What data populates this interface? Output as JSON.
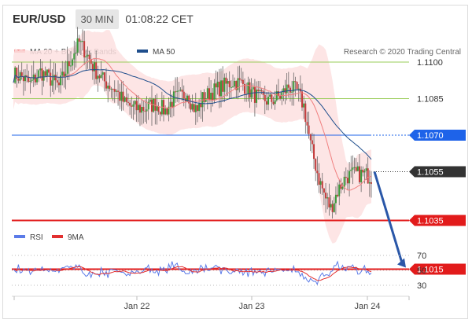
{
  "header": {
    "symbol": "EUR/USD",
    "timeframe": "30 MIN",
    "timestamp": "01:08:22 CET"
  },
  "legend_main": [
    {
      "label": "MA 20 + Bollinger Bands",
      "color": "#f08080"
    },
    {
      "label": "MA 50",
      "color": "#1f4e8c"
    }
  ],
  "legend_rsi": [
    {
      "label": "RSI",
      "color": "#5b7be8"
    },
    {
      "label": "9MA",
      "color": "#e23030"
    }
  ],
  "credit": "Research © 2020 Trading Central",
  "chart_data": {
    "type": "candlestick",
    "x_ticks": [
      "Jan 22",
      "Jan 23",
      "Jan 24"
    ],
    "ylim": [
      1.0995,
      1.1125
    ],
    "levels": [
      {
        "value": 1.11,
        "label": "1.1100",
        "kind": "resistance",
        "color": "#9acd5a"
      },
      {
        "value": 1.1085,
        "label": "1.1085",
        "kind": "resistance",
        "color": "#9acd5a"
      },
      {
        "value": 1.107,
        "label": "1.1070",
        "kind": "pivot",
        "color": "#1e63e9"
      },
      {
        "value": 1.1055,
        "label": "1.1055",
        "kind": "last",
        "color": "#333333"
      },
      {
        "value": 1.1035,
        "label": "1.1035",
        "kind": "support",
        "color": "#e21b1b"
      },
      {
        "value": 1.1015,
        "label": "1.1015",
        "kind": "support",
        "color": "#e21b1b"
      }
    ],
    "forecast": {
      "from": 1.1055,
      "to": 1.1015
    },
    "rsi": {
      "levels": [
        "70",
        "50",
        "30"
      ],
      "ylim": [
        20,
        80
      ]
    }
  }
}
